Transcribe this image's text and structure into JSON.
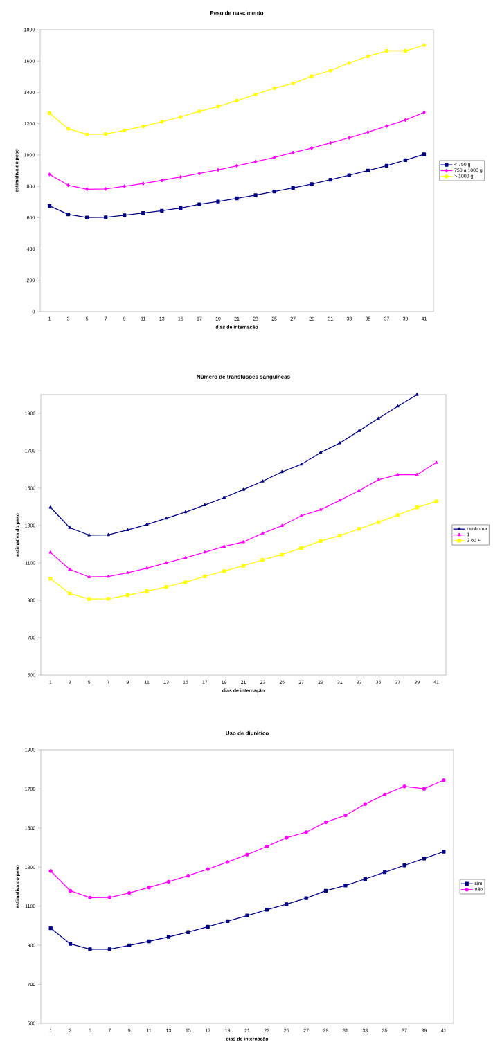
{
  "chart_data": [
    {
      "type": "line",
      "title": "Peso de nascimento",
      "xlabel": "dias de internação",
      "ylabel": "estimativa do peso",
      "categories": [
        "1",
        "3",
        "5",
        "7",
        "9",
        "11",
        "13",
        "15",
        "17",
        "19",
        "21",
        "23",
        "25",
        "27",
        "29",
        "31",
        "33",
        "35",
        "37",
        "39",
        "41"
      ],
      "ylim": [
        0,
        1800
      ],
      "yticks": [
        0,
        200,
        400,
        600,
        800,
        1000,
        1200,
        1400,
        1600,
        1800
      ],
      "legend": "right",
      "series": [
        {
          "name": "< 750 g",
          "color": "#000080",
          "marker": "square",
          "values": [
            675,
            621,
            601,
            602,
            615,
            630,
            644,
            661,
            685,
            703,
            723,
            743,
            767,
            790,
            814,
            842,
            871,
            900,
            931,
            967,
            1004
          ]
        },
        {
          "name": "750 a 1000 g",
          "color": "#ff00ff",
          "marker": "diamond",
          "values": [
            876,
            807,
            781,
            783,
            800,
            818,
            838,
            860,
            882,
            905,
            931,
            957,
            984,
            1015,
            1044,
            1077,
            1110,
            1146,
            1185,
            1223,
            1272
          ]
        },
        {
          "name": "> 1000 g",
          "color": "#ffff00",
          "marker": "circle",
          "values": [
            1267,
            1168,
            1132,
            1134,
            1157,
            1183,
            1212,
            1243,
            1279,
            1310,
            1347,
            1387,
            1427,
            1457,
            1504,
            1539,
            1588,
            1630,
            1665,
            1665,
            1701
          ]
        }
      ]
    },
    {
      "type": "line",
      "title": "Número de transfusões sanguíneas",
      "xlabel": "dias de internação",
      "ylabel": "estimativa do peso",
      "categories": [
        "1",
        "3",
        "5",
        "7",
        "9",
        "11",
        "13",
        "15",
        "17",
        "19",
        "21",
        "23",
        "25",
        "27",
        "29",
        "31",
        "33",
        "35",
        "37",
        "39",
        "41"
      ],
      "ylim": [
        500,
        2000
      ],
      "yticks": [
        500,
        700,
        900,
        1100,
        1300,
        1500,
        1700,
        1900
      ],
      "legend": "right",
      "series": [
        {
          "name": "nenhuma",
          "color": "#000080",
          "marker": "triangle",
          "values": [
            1397,
            1288,
            1249,
            1250,
            1276,
            1305,
            1338,
            1372,
            1410,
            1449,
            1492,
            1537,
            1587,
            1627,
            1690,
            1741,
            1807,
            1873,
            1938,
            2000,
            null
          ]
        },
        {
          "name": "1",
          "color": "#ff00ff",
          "marker": "triangle",
          "values": [
            1156,
            1065,
            1025,
            1027,
            1048,
            1072,
            1100,
            1127,
            1157,
            1188,
            1212,
            1259,
            1299,
            1352,
            1385,
            1435,
            1487,
            1545,
            1572,
            1572,
            1637
          ]
        },
        {
          "name": "2 ou +",
          "color": "#ffff00",
          "marker": "square",
          "values": [
            1016,
            936,
            907,
            908,
            927,
            949,
            972,
            997,
            1028,
            1056,
            1085,
            1116,
            1145,
            1179,
            1217,
            1246,
            1282,
            1318,
            1356,
            1397,
            1429
          ]
        }
      ]
    },
    {
      "type": "line",
      "title": "Uso de diurético",
      "xlabel": "dias de internação",
      "ylabel": "estimativa do peso",
      "categories": [
        "1",
        "3",
        "5",
        "7",
        "9",
        "11",
        "13",
        "15",
        "17",
        "19",
        "21",
        "23",
        "25",
        "27",
        "29",
        "31",
        "33",
        "35",
        "37",
        "39",
        "41"
      ],
      "ylim": [
        500,
        1900
      ],
      "yticks": [
        500,
        700,
        900,
        1100,
        1300,
        1500,
        1700,
        1900
      ],
      "legend": "right",
      "series": [
        {
          "name": "sim",
          "color": "#000080",
          "marker": "square",
          "values": [
            987,
            907,
            880,
            880,
            899,
            920,
            943,
            967,
            995,
            1023,
            1052,
            1082,
            1110,
            1141,
            1179,
            1206,
            1239,
            1274,
            1309,
            1344,
            1379
          ]
        },
        {
          "name": "não",
          "color": "#ff00ff",
          "marker": "circle",
          "values": [
            1280,
            1179,
            1144,
            1145,
            1168,
            1196,
            1225,
            1256,
            1290,
            1326,
            1364,
            1406,
            1450,
            1479,
            1530,
            1565,
            1623,
            1672,
            1713,
            1701,
            1745
          ]
        }
      ]
    }
  ]
}
